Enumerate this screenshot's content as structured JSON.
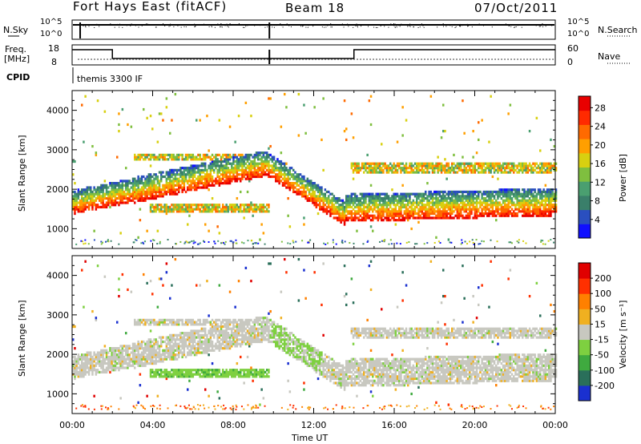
{
  "header": {
    "station": "Fort Hays East (fitACF)",
    "beam": "Beam 18",
    "date": "07/Oct/2011"
  },
  "status_panel": {
    "nsky_label": "N.Sky",
    "nsky_ticks": [
      "10^5",
      "10^0"
    ],
    "nsearch_label": "N.Search",
    "nsearch_ticks": [
      "10^5",
      "10^0"
    ],
    "freq_label_1": "Freq.",
    "freq_label_2": "[MHz]",
    "freq_ticks": [
      "18",
      "8"
    ],
    "nave_label": "Nave",
    "nave_ticks": [
      "60",
      "0"
    ],
    "cpid_label": "CPID",
    "cpid_value": "themis 3300 IF"
  },
  "chart_data": [
    {
      "type": "heatmap",
      "name": "power",
      "ylabel": "Slant Range [km]",
      "xlabel": "",
      "yticks": [
        "1000",
        "2000",
        "3000",
        "4000"
      ],
      "ylim": [
        500,
        4500
      ],
      "xlim_hours": [
        0,
        24
      ],
      "colorbar_label": "Power [dB]",
      "colorbar_ticks": [
        "4",
        "8",
        "12",
        "16",
        "20",
        "24",
        "28"
      ],
      "colorbar_colors": [
        "#1010ff",
        "#2a4fbf",
        "#3a7f6a",
        "#4a9f70",
        "#7fbf3f",
        "#d8d010",
        "#ff9f00",
        "#ff6a00",
        "#ff2a00",
        "#e80000"
      ]
    },
    {
      "type": "heatmap",
      "name": "velocity",
      "ylabel": "Slant Range [km]",
      "xlabel": "Time UT",
      "yticks": [
        "1000",
        "2000",
        "3000",
        "4000"
      ],
      "ylim": [
        500,
        4500
      ],
      "xlim_hours": [
        0,
        24
      ],
      "xticks": [
        "00:00",
        "04:00",
        "08:00",
        "12:00",
        "16:00",
        "20:00",
        "00:00"
      ],
      "colorbar_label": "Velocity [m s⁻¹]",
      "colorbar_ticks": [
        "200",
        "100",
        "50",
        "15",
        "-15",
        "-50",
        "-100",
        "-200"
      ],
      "colorbar_colors": [
        "#1a30d0",
        "#2a6f5a",
        "#3faa3f",
        "#7ed040",
        "#c8c8c0",
        "#f0b020",
        "#ff8000",
        "#ff3000",
        "#e00000"
      ]
    }
  ]
}
